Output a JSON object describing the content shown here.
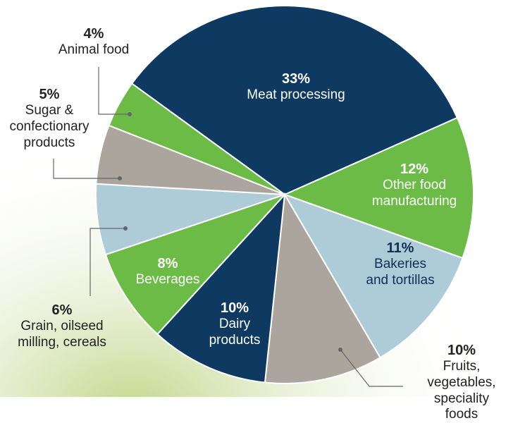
{
  "chart_data": {
    "type": "pie",
    "categories": [
      "Meat processing",
      "Other food\nmanufacturing",
      "Bakeries\nand tortillas",
      "Fruits, vegetables,\nspeciality foods",
      "Dairy\nproducts",
      "Beverages",
      "Grain, oilseed\nmilling, cereals",
      "Sugar &\nconfectionary\nproducts",
      "Animal food"
    ],
    "values": [
      33,
      12,
      11,
      10,
      10,
      8,
      6,
      5,
      4
    ],
    "value_labels": [
      "33%",
      "12%",
      "11%",
      "10%",
      "10%",
      "8%",
      "6%",
      "5%",
      "4%"
    ],
    "colors": [
      "#0e3961",
      "#6cbb47",
      "#aecbd8",
      "#aba59e",
      "#0e3961",
      "#6cbb47",
      "#aecbd8",
      "#aba59e",
      "#6cbb47"
    ]
  }
}
